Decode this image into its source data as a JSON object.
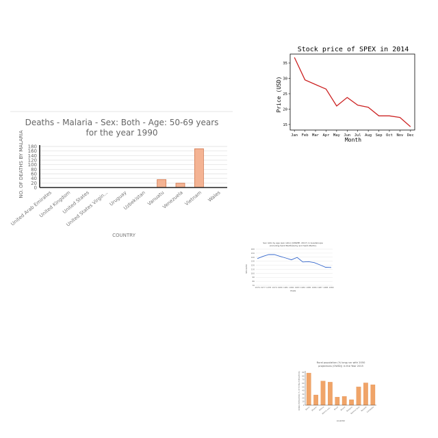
{
  "chart_data": [
    {
      "type": "bar",
      "title_lines": [
        "Deaths - Malaria - Sex: Both - Age: 50-69 years",
        "for the year 1990"
      ],
      "xlabel": "COUNTRY",
      "ylabel": "NO. OF DEATHS BY MALARIA",
      "categories": [
        "United Arab Emirates",
        "United Kingdom",
        "United States",
        "United States Virgin...",
        "Uruguay",
        "Uzbekistan",
        "Vanuatu",
        "Venezuela",
        "Vietnam",
        "Wales"
      ],
      "values": [
        0,
        0,
        0,
        0,
        0,
        0,
        35,
        19,
        170,
        0
      ],
      "yticks": [
        0,
        20,
        40,
        60,
        80,
        100,
        120,
        140,
        160,
        180
      ],
      "ylim": [
        0,
        180
      ],
      "grid": true,
      "colors": {
        "fill": "#f4b393",
        "stroke": "#d07a52",
        "title": "#666666",
        "grid": "#dddddd"
      }
    },
    {
      "type": "line",
      "title": "Stock price of SPEX in 2014",
      "xlabel": "Month",
      "ylabel": "Price (USD)",
      "categories": [
        "Jan",
        "Feb",
        "Mar",
        "Apr",
        "May",
        "Jun",
        "Jul",
        "Aug",
        "Sep",
        "Oct",
        "Nov",
        "Dec"
      ],
      "values": [
        36.8,
        29.5,
        28,
        26.5,
        21,
        23.8,
        21.3,
        20.6,
        17.8,
        17.8,
        17.3,
        14.3
      ],
      "yticks": [
        15,
        20,
        25,
        30,
        35
      ],
      "ylim": [
        13.2,
        37.9
      ],
      "grid": false,
      "colors": {
        "line": "#cc2222"
      }
    },
    {
      "type": "line",
      "title_lines": [
        "Sex ratio by age (sex ratio) (UNWPP, 2017) in Guadeloupe",
        "(including Saint Barthélemy and Saint-Martin)"
      ],
      "xlabel": "YEARS",
      "ylabel": "SEX RATIO",
      "categories": [
        "1976",
        "1977",
        "1978",
        "1979",
        "1980",
        "1981",
        "1982",
        "1983",
        "1984",
        "1985",
        "1986",
        "1987",
        "1988",
        "1989"
      ],
      "values": [
        136.5,
        142,
        146.5,
        146.5,
        142,
        138,
        133.5,
        139.5,
        128,
        129,
        126.5,
        121,
        115,
        114.5
      ],
      "yticks": [
        70,
        80,
        90,
        100,
        110,
        120,
        130,
        140,
        150,
        160
      ],
      "ylim": [
        70,
        160
      ],
      "grid": true,
      "colors": {
        "line": "#3366cc",
        "grid": "#e0e0e0"
      }
    },
    {
      "type": "bar",
      "title_lines": [
        "Rural population (% long-run with 2050",
        "projections (OWID)) in the Year 2015"
      ],
      "xlabel": "COUNTRY",
      "ylabel": "RURAL POPULATION (% OF TOTAL POPULATION)",
      "categories": [
        "Benin",
        "Bhutan",
        "Bolivia",
        "Bosnia and...",
        "Brazil",
        "Brunei",
        "Bulgaria",
        "Burkina Faso",
        "Burundi",
        "Cambodia"
      ],
      "values": [
        88,
        28,
        66,
        63,
        22,
        24,
        15,
        50,
        61,
        56
      ],
      "yticks": [
        0,
        10,
        20,
        30,
        40,
        50,
        60,
        70,
        80,
        90
      ],
      "ylim": [
        0,
        90
      ],
      "grid": false,
      "colors": {
        "fill": "#f0a468",
        "stroke": "#e08844"
      }
    }
  ]
}
